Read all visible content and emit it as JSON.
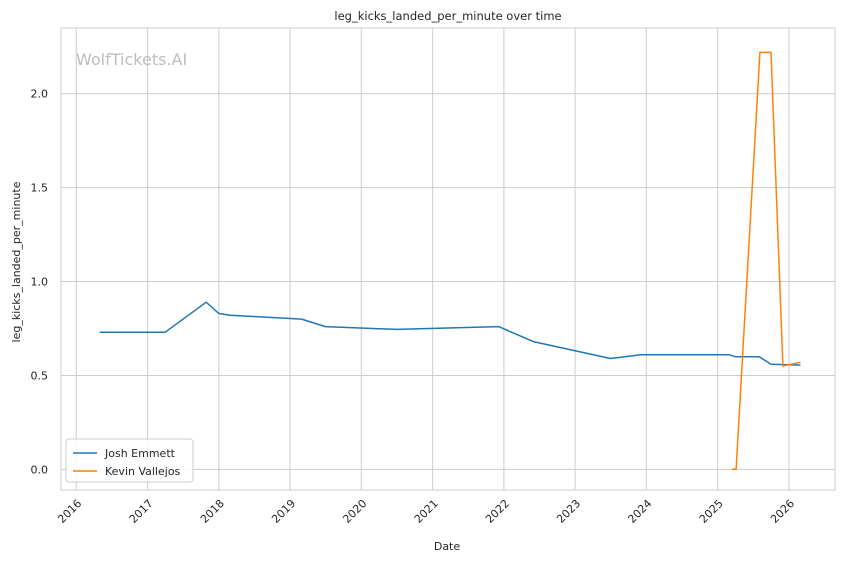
{
  "watermark": "WolfTickets.AI",
  "chart_data": {
    "type": "line",
    "title": "leg_kicks_landed_per_minute over time",
    "xlabel": "Date",
    "ylabel": "leg_kicks_landed_per_minute",
    "x_ticks": [
      "2016",
      "2017",
      "2018",
      "2019",
      "2020",
      "2021",
      "2022",
      "2023",
      "2024",
      "2025",
      "2026"
    ],
    "y_ticks": [
      "0.0",
      "0.5",
      "1.0",
      "1.5",
      "2.0"
    ],
    "xlim": [
      "2015-10-15",
      "2026-08-25"
    ],
    "ylim": [
      -0.11,
      2.35
    ],
    "grid": true,
    "legend_position": "lower-left",
    "series": [
      {
        "name": "Josh Emmett",
        "color": "#1f77b4",
        "points": [
          {
            "x": "2016-04-30",
            "y": 0.73
          },
          {
            "x": "2017-04-01",
            "y": 0.73
          },
          {
            "x": "2017-10-28",
            "y": 0.89
          },
          {
            "x": "2018-01-01",
            "y": 0.83
          },
          {
            "x": "2018-03-01",
            "y": 0.82
          },
          {
            "x": "2019-03-01",
            "y": 0.8
          },
          {
            "x": "2019-07-01",
            "y": 0.76
          },
          {
            "x": "2020-07-01",
            "y": 0.745
          },
          {
            "x": "2021-12-05",
            "y": 0.76
          },
          {
            "x": "2022-06-01",
            "y": 0.68
          },
          {
            "x": "2023-07-01",
            "y": 0.59
          },
          {
            "x": "2023-12-01",
            "y": 0.61
          },
          {
            "x": "2025-03-01",
            "y": 0.61
          },
          {
            "x": "2025-04-01",
            "y": 0.6
          },
          {
            "x": "2025-08-01",
            "y": 0.6
          },
          {
            "x": "2025-10-01",
            "y": 0.56
          },
          {
            "x": "2026-03-01",
            "y": 0.555
          }
        ]
      },
      {
        "name": "Kevin Vallejos",
        "color": "#ff7f0e",
        "points": [
          {
            "x": "2025-03-15",
            "y": 0.0
          },
          {
            "x": "2025-04-05",
            "y": 0.0
          },
          {
            "x": "2025-08-05",
            "y": 2.22
          },
          {
            "x": "2025-10-01",
            "y": 2.22
          },
          {
            "x": "2025-12-01",
            "y": 0.55
          },
          {
            "x": "2026-03-01",
            "y": 0.57
          }
        ]
      }
    ]
  }
}
